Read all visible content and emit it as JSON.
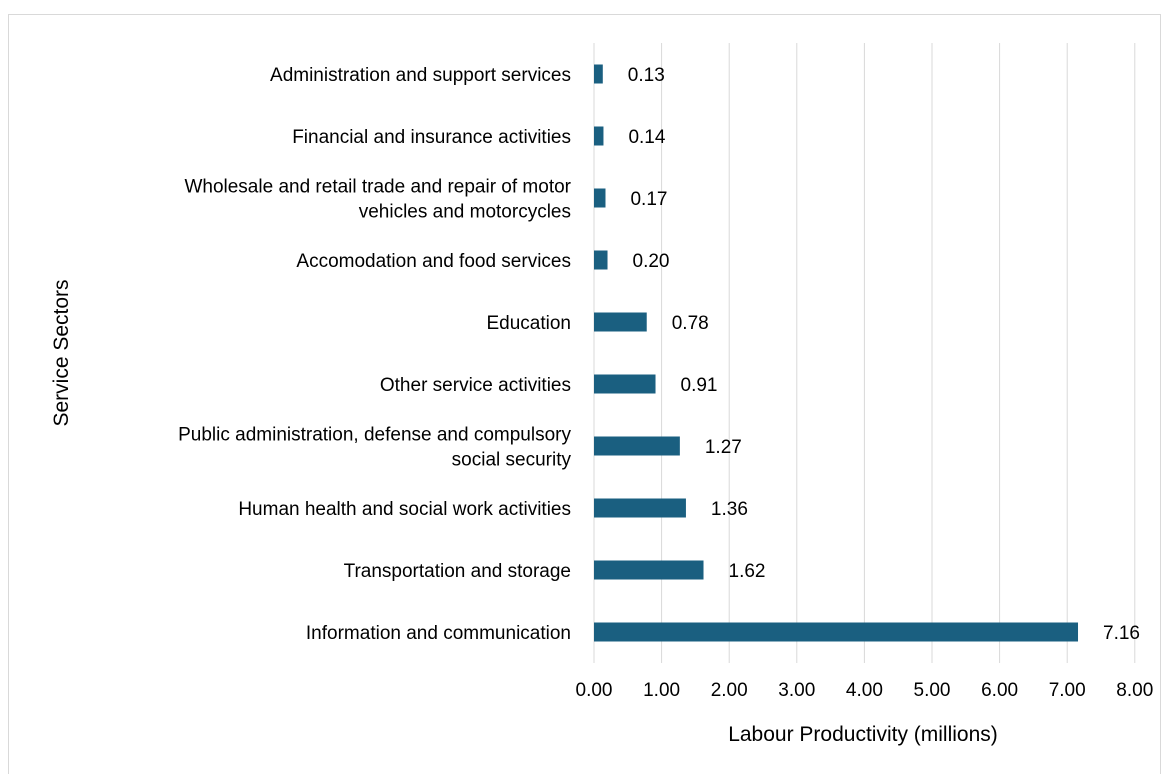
{
  "chart_data": {
    "type": "bar",
    "orientation": "horizontal",
    "title": "",
    "xlabel": "Labour Productivity (millions)",
    "ylabel": "Service Sectors",
    "xlim": [
      0,
      8
    ],
    "x_ticks": [
      "0.00",
      "1.00",
      "2.00",
      "3.00",
      "4.00",
      "5.00",
      "6.00",
      "7.00",
      "8.00"
    ],
    "grid": "vertical",
    "bar_color": "#1a5f80",
    "categories": [
      [
        "Administration and support services"
      ],
      [
        "Financial and insurance activities"
      ],
      [
        "Wholesale and retail trade and repair of motor",
        "vehicles and motorcycles"
      ],
      [
        "Accomodation and food services"
      ],
      [
        "Education"
      ],
      [
        "Other service activities"
      ],
      [
        "Public administration, defense and compulsory",
        "social security"
      ],
      [
        "Human health and social work activities"
      ],
      [
        "Transportation and storage"
      ],
      [
        "Information and communication"
      ]
    ],
    "values": [
      0.13,
      0.14,
      0.17,
      0.2,
      0.78,
      0.91,
      1.27,
      1.36,
      1.62,
      7.16
    ],
    "data_labels": [
      "0.13",
      "0.14",
      "0.17",
      "0.20",
      "0.78",
      "0.91",
      "1.27",
      "1.36",
      "1.62",
      "7.16"
    ]
  }
}
